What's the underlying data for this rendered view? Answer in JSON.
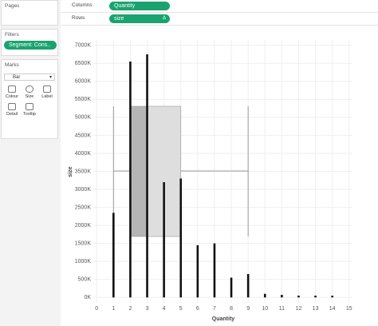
{
  "sidebar": {
    "pages": "Pages",
    "filters": "Filters",
    "filter_pill": "Segment: Cons..",
    "marks": "Marks",
    "mark_type": "Bar",
    "buttons": [
      "Colour",
      "Size",
      "Label",
      "Detail",
      "Tooltip"
    ]
  },
  "shelves": {
    "columns_label": "Columns",
    "columns_pill": "Quantity",
    "rows_label": "Rows",
    "rows_pill": "size"
  },
  "chart_data": {
    "type": "bar",
    "x_label": "Quantity",
    "y_label": "size",
    "x": [
      1,
      2,
      3,
      4,
      5,
      6,
      7,
      8,
      9,
      10,
      11,
      12,
      13,
      14
    ],
    "values": [
      2350000,
      6550000,
      6750000,
      3200000,
      3300000,
      1450000,
      1500000,
      550000,
      650000,
      100000,
      70000,
      50000,
      50000,
      50000
    ],
    "color": "#111111",
    "boxplot": {
      "whisker_low": 1,
      "q1": 2,
      "median": 3,
      "q3": 5,
      "whisker_high": 9
    },
    "xlim": [
      -0.2,
      15.2
    ],
    "xticks": [
      0,
      1,
      2,
      3,
      4,
      5,
      6,
      7,
      8,
      9,
      10,
      11,
      12,
      13,
      14,
      15
    ],
    "ylim": [
      -150000,
      7150000
    ],
    "yticks": [
      {
        "value": 0,
        "label": "0K"
      },
      {
        "value": 500000,
        "label": "500K"
      },
      {
        "value": 1000000,
        "label": "1000K"
      },
      {
        "value": 1500000,
        "label": "1500K"
      },
      {
        "value": 2000000,
        "label": "2000K"
      },
      {
        "value": 2500000,
        "label": "2500K"
      },
      {
        "value": 3000000,
        "label": "3000K"
      },
      {
        "value": 3500000,
        "label": "3500K"
      },
      {
        "value": 4000000,
        "label": "4000K"
      },
      {
        "value": 4500000,
        "label": "4500K"
      },
      {
        "value": 5000000,
        "label": "5000K"
      },
      {
        "value": 5500000,
        "label": "5500K"
      },
      {
        "value": 6000000,
        "label": "6000K"
      },
      {
        "value": 6500000,
        "label": "6500K"
      },
      {
        "value": 7000000,
        "label": "7000K"
      }
    ],
    "grid": true
  }
}
